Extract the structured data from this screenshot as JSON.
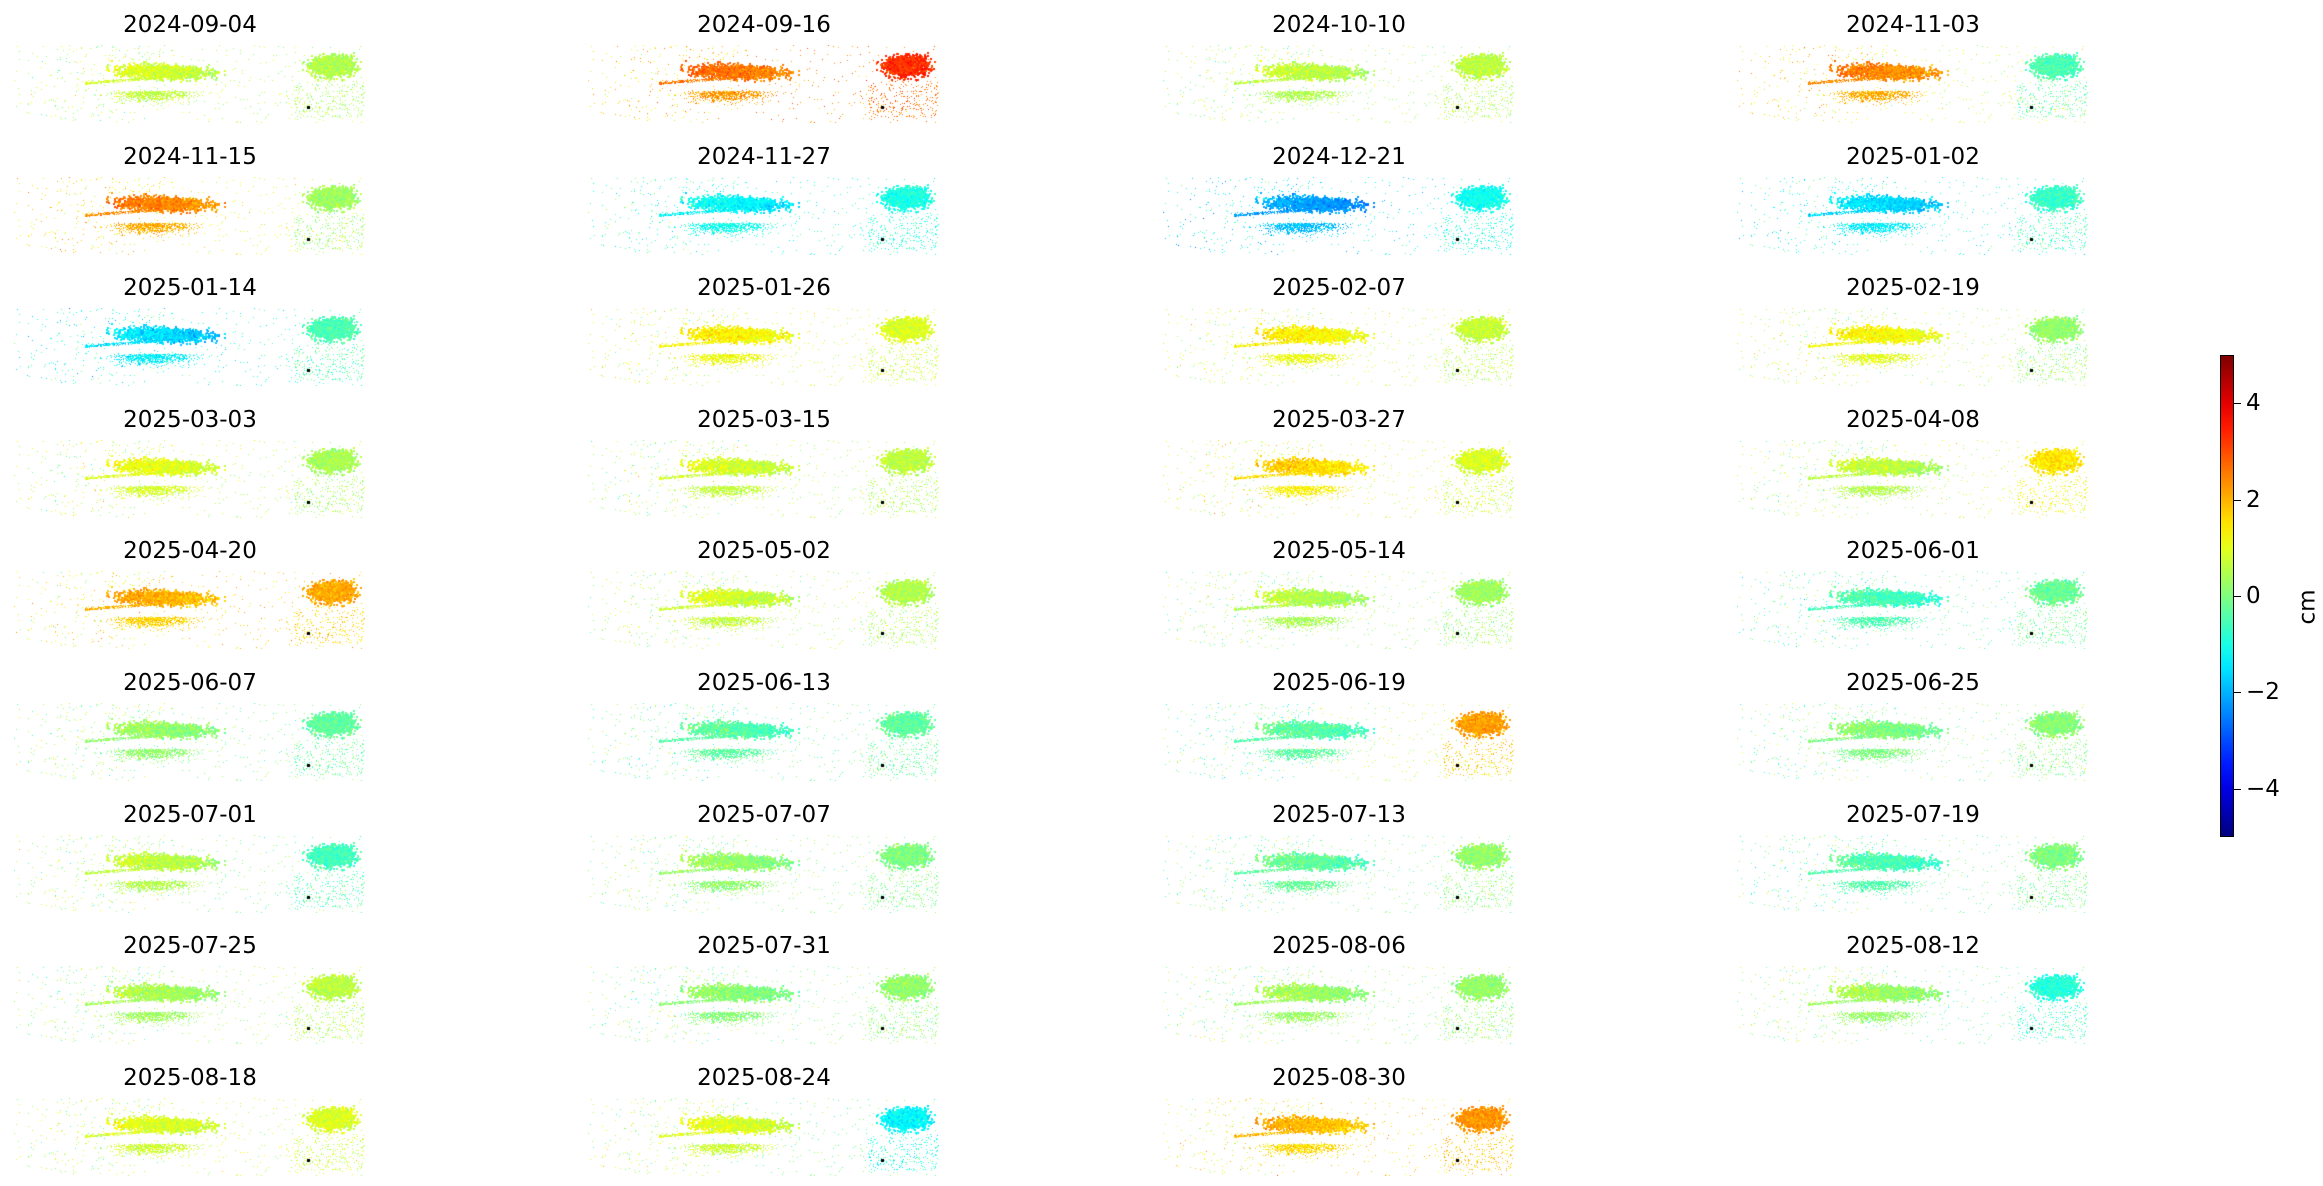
{
  "chart_data": {
    "type": "heatmap",
    "colormap": "jet",
    "grid": false,
    "colorbar": {
      "label": "cm",
      "range": [
        -5,
        5
      ],
      "ticks": [
        4,
        2,
        0,
        -2,
        -4
      ],
      "tick_labels": [
        "4",
        "2",
        "0",
        "−2",
        "−4"
      ],
      "placement": "right"
    },
    "panels": [
      {
        "date": "2024-09-04",
        "left": 0.8,
        "right": 0.5
      },
      {
        "date": "2024-09-16",
        "left": 2.6,
        "right": 3.3
      },
      {
        "date": "2024-10-10",
        "left": 0.6,
        "right": 0.6
      },
      {
        "date": "2024-11-03",
        "left": 2.4,
        "right": -0.5
      },
      {
        "date": "2024-11-15",
        "left": 2.4,
        "right": 0.3
      },
      {
        "date": "2024-11-27",
        "left": -1.3,
        "right": -1.0
      },
      {
        "date": "2024-12-21",
        "left": -2.2,
        "right": -1.1
      },
      {
        "date": "2025-01-02",
        "left": -1.6,
        "right": -0.7
      },
      {
        "date": "2025-01-14",
        "left": -1.6,
        "right": -0.5
      },
      {
        "date": "2025-01-26",
        "left": 1.3,
        "right": 0.9
      },
      {
        "date": "2025-02-07",
        "left": 1.3,
        "right": 0.7
      },
      {
        "date": "2025-02-19",
        "left": 1.2,
        "right": 0.2
      },
      {
        "date": "2025-03-03",
        "left": 1.0,
        "right": 0.4
      },
      {
        "date": "2025-03-15",
        "left": 0.8,
        "right": 0.6
      },
      {
        "date": "2025-03-27",
        "left": 1.6,
        "right": 0.9
      },
      {
        "date": "2025-04-08",
        "left": 0.6,
        "right": 1.5
      },
      {
        "date": "2025-04-20",
        "left": 2.0,
        "right": 2.1
      },
      {
        "date": "2025-05-02",
        "left": 0.8,
        "right": 0.5
      },
      {
        "date": "2025-05-14",
        "left": 0.5,
        "right": 0.3
      },
      {
        "date": "2025-06-01",
        "left": -0.6,
        "right": -0.2
      },
      {
        "date": "2025-06-07",
        "left": 0.2,
        "right": -0.3
      },
      {
        "date": "2025-06-13",
        "left": -0.4,
        "right": -0.3
      },
      {
        "date": "2025-06-19",
        "left": -0.4,
        "right": 2.2
      },
      {
        "date": "2025-06-25",
        "left": 0.0,
        "right": 0.1
      },
      {
        "date": "2025-07-01",
        "left": 0.6,
        "right": -0.6
      },
      {
        "date": "2025-07-07",
        "left": 0.2,
        "right": 0.0
      },
      {
        "date": "2025-07-13",
        "left": -0.3,
        "right": 0.2
      },
      {
        "date": "2025-07-19",
        "left": -0.5,
        "right": 0.0
      },
      {
        "date": "2025-07-25",
        "left": 0.4,
        "right": 0.6
      },
      {
        "date": "2025-07-31",
        "left": 0.1,
        "right": 0.2
      },
      {
        "date": "2025-08-06",
        "left": 0.3,
        "right": 0.2
      },
      {
        "date": "2025-08-12",
        "left": 0.3,
        "right": -0.9
      },
      {
        "date": "2025-08-18",
        "left": 0.9,
        "right": 0.9
      },
      {
        "date": "2025-08-24",
        "left": 0.9,
        "right": -1.3
      },
      {
        "date": "2025-08-30",
        "left": 1.9,
        "right": 2.3
      }
    ]
  }
}
